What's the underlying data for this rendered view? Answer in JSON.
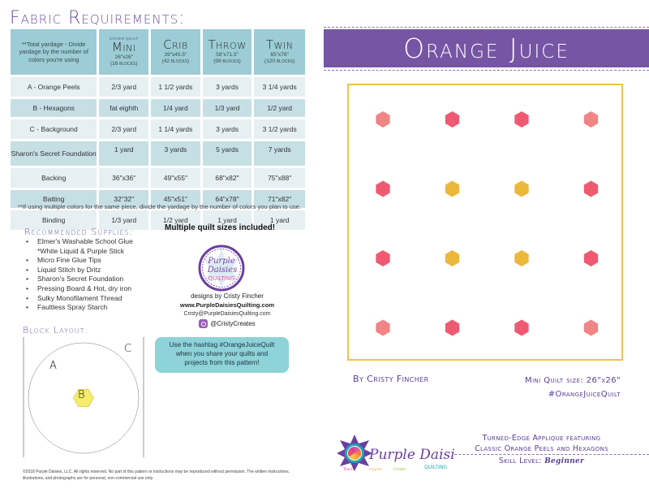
{
  "left_page": {
    "fabric_requirements": {
      "title": "Fabric Requirements:",
      "header_note": "**Total yardage - Divide yardage by the number of colors you're using",
      "sizes": [
        {
          "cover_label": "Cover Quilt",
          "name": "Mini",
          "dimensions": "26\"x26\"",
          "blocks": "(16 blocks)"
        },
        {
          "cover_label": "",
          "name": "Crib",
          "dimensions": "39\"x45.5\"",
          "blocks": "(42 blocks)"
        },
        {
          "cover_label": "",
          "name": "Throw",
          "dimensions": "58\"x71.5\"",
          "blocks": "(99 blocks)"
        },
        {
          "cover_label": "",
          "name": "Twin",
          "dimensions": "65\"x78\"",
          "blocks": "(120 blocks)"
        }
      ],
      "rows": [
        {
          "label": "A - Orange Peels",
          "values": [
            "2/3 yard",
            "1 1/2 yards",
            "3 yards",
            "3 1/4 yards"
          ]
        },
        {
          "label": "B - Hexagons",
          "values": [
            "fat eighth",
            "1/4 yard",
            "1/3 yard",
            "1/2 yard"
          ]
        },
        {
          "label": "C - Background",
          "values": [
            "2/3 yard",
            "1 1/4 yards",
            "3 yards",
            "3 1/2 yards"
          ]
        },
        {
          "label": "Sharon's Secret Foundation",
          "values": [
            "1 yard",
            "3 yards",
            "5 yards",
            "7 yards"
          ]
        },
        {
          "label": "Backing",
          "values": [
            "36\"x36\"",
            "49\"x55\"",
            "68\"x82\"",
            "75\"x88\""
          ]
        },
        {
          "label": "Batting",
          "values": [
            "32\"32\"",
            "45\"x51\"",
            "64\"x78\"",
            "71\"x82\""
          ]
        },
        {
          "label": "Binding",
          "values": [
            "1/3 yard",
            "1/2 yard",
            "1 yard",
            "1 yard"
          ]
        }
      ],
      "footnote": "**If using multiple colors for the same piece, divide the yardage by the number of colors you plan to use."
    },
    "supplies": {
      "title": "Recommended Supplies:",
      "items": [
        "Elmer's Washable School Glue",
        "*White Liquid & Purple Stick",
        "Micro Fine Glue Tips",
        "Liquid Stitch by Dritz",
        "Sharon's Secret Foundation",
        "Pressing Board & Hot, dry iron",
        "Sulky Monofilament Thread",
        "Faultless Spray Starch"
      ]
    },
    "promo": {
      "multiple_sizes": "Multiple quilt sizes included!",
      "badge": {
        "line1": "Purple",
        "line2": "Daisies",
        "line3": "QUILTING"
      },
      "designer": "designs by Cristy Fincher",
      "website": "www.PurpleDaisiesQuilting.com",
      "email": "Cristy@PurpleDaisiesQuilting.com",
      "instagram": "@CristyCreates",
      "hashtag_box": [
        "Use the hashtag #OrangeJuiceQuilt",
        "when you share your quilts and",
        "projects from this pattern!"
      ]
    },
    "block_layout": {
      "title": "Block Layout:",
      "labels": {
        "a": "A",
        "b": "B",
        "c": "C"
      },
      "colors": {
        "peel_light": "#12A5B5",
        "peel_dark": "#087590",
        "hexagon": "#F4EC6A",
        "background": "#FFFFFF"
      }
    },
    "copyright": "©2018 Purple Daisies, LLC, All rights reserved. No part of this pattern or instructions may be reproduced without permission. The written instructions, illustrations, and photographs are for personal, non-commercial use only."
  },
  "right_page": {
    "title": "Orange Juice",
    "byline": "By Cristy Fincher",
    "mini_size": "Mini Quilt size: 26\"x26\"",
    "hashtag": "#OrangeJuiceQuilt",
    "logo": {
      "name": "Purple Daisies",
      "sub": "QUILTING",
      "words": [
        "Teach",
        "Inspire",
        "Create"
      ]
    },
    "tagline": {
      "line1": "Turned-Edge Applique featuring",
      "line2": "Classic Orange Peels and Hexagons",
      "skill_label": "Skill Level:",
      "skill_value": "Beginner"
    },
    "colors": {
      "banner": "#7655A5",
      "frame": "#F4C14A",
      "hot_pink": "#EF4B69",
      "medium_pink": "#EE6E7A",
      "salmon": "#E98070",
      "light_pink": "#F8B7B6",
      "peach": "#EDAA95",
      "light_orange": "#F5B385",
      "yellow": "#F5C542"
    },
    "quilt_blocks": [
      {
        "tl": "E",
        "tr": "L",
        "bl": "L",
        "br": "P",
        "hex": "#EF8585"
      },
      {
        "tl": "P",
        "tr": "M",
        "bl": "M",
        "br": "S",
        "hex": "#EF5A72"
      },
      {
        "tl": "M",
        "tr": "P",
        "bl": "S",
        "br": "M",
        "hex": "#EF5A72"
      },
      {
        "tl": "L",
        "tr": "E",
        "bl": "P",
        "br": "L",
        "hex": "#EF8585"
      },
      {
        "tl": "P",
        "tr": "M",
        "bl": "M",
        "br": "S",
        "hex": "#EF5A72"
      },
      {
        "tl": "S",
        "tr": "O",
        "bl": "O",
        "br": "Y",
        "hex": "#EBB83A"
      },
      {
        "tl": "O",
        "tr": "S",
        "bl": "Y",
        "br": "O",
        "hex": "#EBB83A"
      },
      {
        "tl": "M",
        "tr": "P",
        "bl": "S",
        "br": "M",
        "hex": "#EF5A72"
      },
      {
        "tl": "M",
        "tr": "S",
        "bl": "P",
        "br": "M",
        "hex": "#EF5A72"
      },
      {
        "tl": "O",
        "tr": "Y",
        "bl": "S",
        "br": "O",
        "hex": "#EBB83A"
      },
      {
        "tl": "Y",
        "tr": "O",
        "bl": "O",
        "br": "S",
        "hex": "#EBB83A"
      },
      {
        "tl": "S",
        "tr": "M",
        "bl": "M",
        "br": "P",
        "hex": "#EF5A72"
      },
      {
        "tl": "L",
        "tr": "P",
        "bl": "E",
        "br": "L",
        "hex": "#EF8585"
      },
      {
        "tl": "M",
        "tr": "S",
        "bl": "P",
        "br": "M",
        "hex": "#EF5A72"
      },
      {
        "tl": "S",
        "tr": "M",
        "bl": "M",
        "br": "P",
        "hex": "#EF5A72"
      },
      {
        "tl": "P",
        "tr": "L",
        "bl": "L",
        "br": "E",
        "hex": "#EF8585"
      }
    ]
  }
}
